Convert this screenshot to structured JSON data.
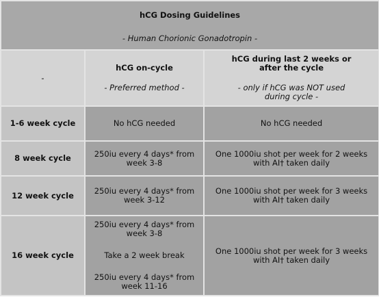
{
  "title": {
    "main": "hCG Dosing Guidelines",
    "subtitle": "- Human Chorionic Gonadotropin -"
  },
  "header": {
    "corner": "-",
    "col2_line1": "hCG on-cycle",
    "col2_note": "- Preferred method -",
    "col3_line1": "hCG during last 2 weeks or",
    "col3_line2": "after the cycle",
    "col3_note_line1": "- only if hCG was NOT used",
    "col3_note_line2": "during cycle -"
  },
  "rows": [
    {
      "label": "1-6 week cycle",
      "on_cycle": [
        "No hCG needed"
      ],
      "after_cycle": [
        "No hCG needed"
      ]
    },
    {
      "label": "8 week cycle",
      "on_cycle": [
        "250iu every 4 days* from",
        "week 3-8"
      ],
      "after_cycle": [
        "One 1000iu shot per week for 2 weeks",
        "with AI† taken daily"
      ]
    },
    {
      "label": "12 week cycle",
      "on_cycle": [
        "250iu every 4 days* from",
        "week 3-12"
      ],
      "after_cycle": [
        "One 1000iu shot per week for 3 weeks",
        "with AI† taken daily"
      ]
    },
    {
      "label": "16 week cycle",
      "on_cycle_block1": [
        "250iu every 4 days* from",
        "week 3-8"
      ],
      "on_cycle_break": "Take a 2 week break",
      "on_cycle_block2": [
        "250iu every 4 days* from",
        "week 11-16"
      ],
      "after_cycle": [
        "One 1000iu shot per week for 3 weeks",
        "with AI† taken daily"
      ]
    }
  ]
}
